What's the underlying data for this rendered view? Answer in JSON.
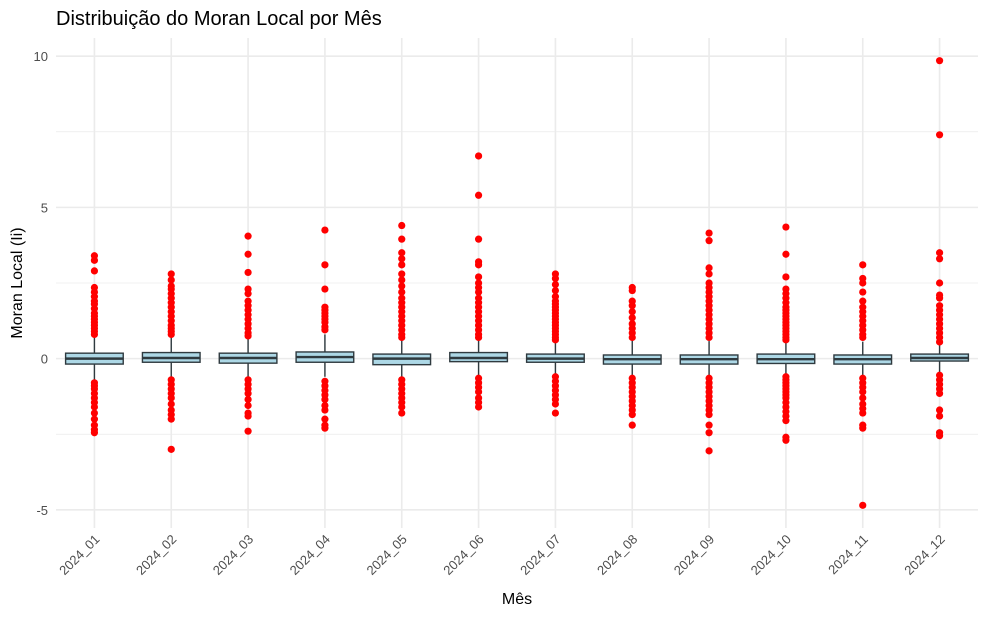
{
  "chart_data": {
    "type": "boxplot",
    "title": "Distribuição do Moran Local por Mês",
    "xlabel": "Mês",
    "ylabel": "Moran Local (Ii)",
    "ylim": [
      -5.6,
      10.6
    ],
    "yticks": [
      -5,
      0,
      5,
      10
    ],
    "yticks_labels": [
      "-5",
      "0",
      "5",
      "10"
    ],
    "grid": true,
    "colors": {
      "box_fill": "#add8e6",
      "box_stroke": "#2f3a3f",
      "outlier": "#ff0000",
      "grid": "#ebebeb"
    },
    "categories": [
      "2024_01",
      "2024_02",
      "2024_03",
      "2024_04",
      "2024_05",
      "2024_06",
      "2024_07",
      "2024_08",
      "2024_09",
      "2024_10",
      "2024_11",
      "2024_12"
    ],
    "boxes": [
      {
        "q1": -0.18,
        "median": 0.0,
        "q3": 0.18,
        "whisker_low": -0.7,
        "whisker_high": 0.7,
        "outliers": [
          3.4,
          3.25,
          2.9,
          2.35,
          2.2,
          2.05,
          1.9,
          1.8,
          1.65,
          1.5,
          1.4,
          1.3,
          1.2,
          1.1,
          1.0,
          0.9,
          0.8,
          -0.8,
          -0.9,
          -1.0,
          -1.15,
          -1.3,
          -1.45,
          -1.6,
          -1.8,
          -2.0,
          -2.2,
          -2.35,
          -2.45
        ]
      },
      {
        "q1": -0.12,
        "median": 0.02,
        "q3": 0.2,
        "whisker_low": -0.6,
        "whisker_high": 0.72,
        "outliers": [
          2.8,
          2.6,
          2.4,
          2.3,
          2.15,
          2.0,
          1.85,
          1.7,
          1.55,
          1.4,
          1.25,
          1.1,
          1.0,
          0.9,
          0.8,
          -0.7,
          -0.85,
          -1.0,
          -1.15,
          -1.3,
          -1.5,
          -1.7,
          -1.85,
          -2.0,
          -3.0
        ]
      },
      {
        "q1": -0.15,
        "median": 0.02,
        "q3": 0.18,
        "whisker_low": -0.62,
        "whisker_high": 0.65,
        "outliers": [
          4.05,
          3.45,
          2.85,
          2.3,
          2.15,
          1.9,
          1.75,
          1.6,
          1.45,
          1.3,
          1.15,
          1.0,
          0.85,
          0.75,
          -0.7,
          -0.85,
          -1.0,
          -1.15,
          -1.35,
          -1.55,
          -1.8,
          -1.9,
          -2.4
        ]
      },
      {
        "q1": -0.12,
        "median": 0.05,
        "q3": 0.22,
        "whisker_low": -0.6,
        "whisker_high": 0.8,
        "outliers": [
          4.25,
          3.1,
          2.3,
          1.7,
          1.6,
          1.5,
          1.4,
          1.3,
          1.2,
          1.05,
          0.95,
          -0.75,
          -0.9,
          -1.05,
          -1.2,
          -1.35,
          -1.55,
          -1.7,
          -2.0,
          -2.2,
          -2.3
        ]
      },
      {
        "q1": -0.2,
        "median": 0.0,
        "q3": 0.15,
        "whisker_low": -0.65,
        "whisker_high": 0.62,
        "outliers": [
          4.4,
          3.95,
          3.5,
          3.3,
          3.1,
          2.8,
          2.6,
          2.4,
          2.2,
          2.0,
          1.85,
          1.7,
          1.55,
          1.4,
          1.25,
          1.1,
          0.95,
          0.8,
          0.7,
          -0.7,
          -0.85,
          -1.0,
          -1.15,
          -1.3,
          -1.45,
          -1.6,
          -1.8
        ]
      },
      {
        "q1": -0.1,
        "median": 0.02,
        "q3": 0.2,
        "whisker_low": -0.58,
        "whisker_high": 0.62,
        "outliers": [
          6.7,
          5.4,
          3.95,
          3.2,
          3.1,
          2.7,
          2.5,
          2.35,
          2.2,
          2.0,
          1.85,
          1.7,
          1.55,
          1.4,
          1.25,
          1.1,
          0.95,
          0.8,
          0.7,
          -0.65,
          -0.8,
          -0.95,
          -1.1,
          -1.3,
          -1.45,
          -1.6
        ]
      },
      {
        "q1": -0.12,
        "median": 0.0,
        "q3": 0.15,
        "whisker_low": -0.55,
        "whisker_high": 0.58,
        "outliers": [
          2.8,
          2.65,
          2.45,
          2.25,
          2.05,
          1.9,
          1.8,
          1.7,
          1.6,
          1.5,
          1.4,
          1.3,
          1.2,
          1.1,
          1.0,
          0.9,
          0.8,
          0.7,
          0.62,
          -0.6,
          -0.75,
          -0.9,
          -1.05,
          -1.2,
          -1.35,
          -1.5,
          -1.8
        ]
      },
      {
        "q1": -0.18,
        "median": -0.02,
        "q3": 0.12,
        "whisker_low": -0.6,
        "whisker_high": 0.6,
        "outliers": [
          2.35,
          2.25,
          1.9,
          1.75,
          1.55,
          1.35,
          1.15,
          1.0,
          0.85,
          0.7,
          -0.65,
          -0.8,
          -0.95,
          -1.1,
          -1.25,
          -1.4,
          -1.55,
          -1.7,
          -1.85,
          -2.2
        ]
      },
      {
        "q1": -0.18,
        "median": -0.02,
        "q3": 0.12,
        "whisker_low": -0.6,
        "whisker_high": 0.58,
        "outliers": [
          4.15,
          3.9,
          3.0,
          2.8,
          2.5,
          2.35,
          2.2,
          2.05,
          1.9,
          1.75,
          1.6,
          1.45,
          1.3,
          1.15,
          1.0,
          0.85,
          0.7,
          -0.65,
          -0.8,
          -0.95,
          -1.1,
          -1.25,
          -1.4,
          -1.55,
          -1.7,
          -1.85,
          -2.2,
          -2.45,
          -3.05
        ]
      },
      {
        "q1": -0.16,
        "median": -0.02,
        "q3": 0.15,
        "whisker_low": -0.6,
        "whisker_high": 0.58,
        "outliers": [
          4.35,
          3.45,
          2.7,
          2.3,
          2.15,
          2.0,
          1.85,
          1.7,
          1.6,
          1.5,
          1.4,
          1.3,
          1.2,
          1.1,
          1.0,
          0.9,
          0.8,
          0.7,
          0.62,
          -0.6,
          -0.7,
          -0.8,
          -0.9,
          -1.0,
          -1.1,
          -1.2,
          -1.3,
          -1.45,
          -1.6,
          -1.75,
          -1.9,
          -2.05,
          -2.6,
          -2.7
        ]
      },
      {
        "q1": -0.18,
        "median": -0.02,
        "q3": 0.12,
        "whisker_low": -0.58,
        "whisker_high": 0.56,
        "outliers": [
          3.1,
          2.65,
          2.5,
          2.2,
          1.9,
          1.7,
          1.55,
          1.4,
          1.25,
          1.1,
          0.95,
          0.8,
          0.7,
          -0.65,
          -0.8,
          -0.95,
          -1.1,
          -1.3,
          -1.5,
          -1.65,
          -1.8,
          -2.2,
          -2.3,
          -4.85
        ]
      },
      {
        "q1": -0.08,
        "median": 0.02,
        "q3": 0.15,
        "whisker_low": -0.45,
        "whisker_high": 0.45,
        "outliers": [
          9.85,
          7.4,
          3.5,
          3.3,
          2.5,
          2.1,
          2.0,
          1.75,
          1.6,
          1.45,
          1.3,
          1.15,
          1.0,
          0.85,
          0.7,
          0.55,
          -0.55,
          -0.7,
          -0.85,
          -1.0,
          -1.15,
          -1.7,
          -1.9,
          -2.45,
          -2.55
        ]
      }
    ]
  }
}
